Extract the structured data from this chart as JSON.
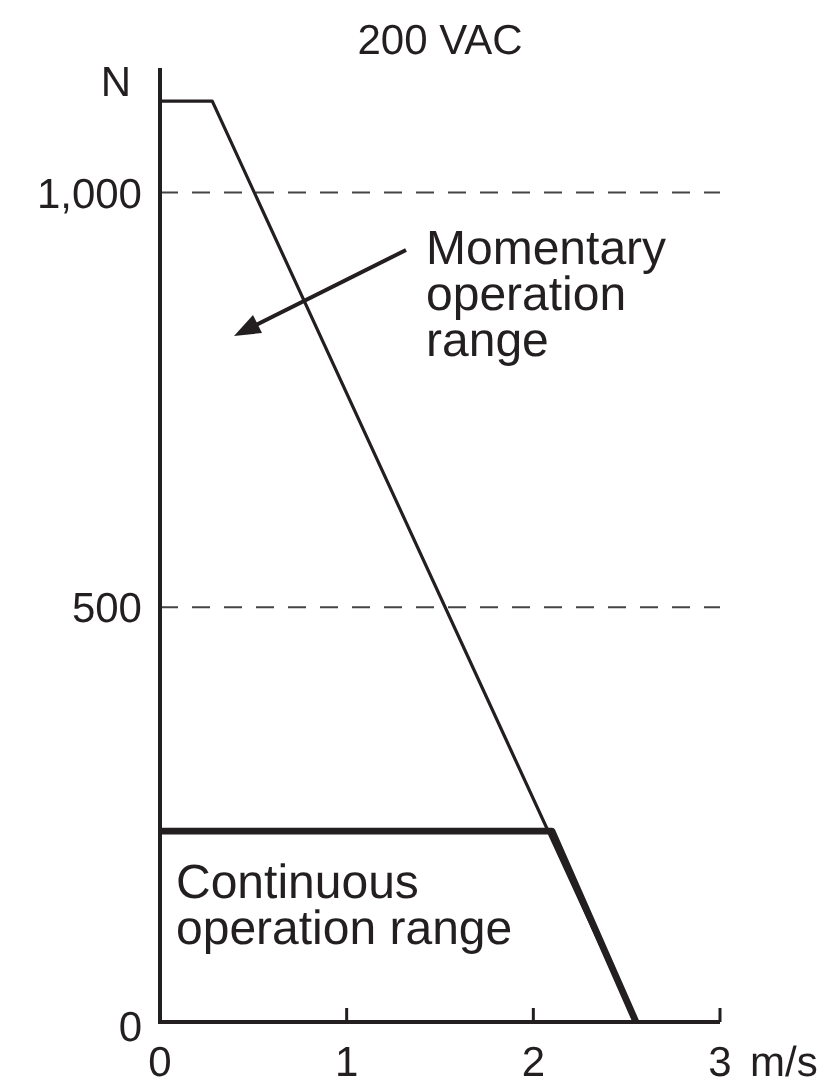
{
  "chart_data": {
    "type": "line",
    "title": "200 VAC",
    "xlabel": "m/s",
    "ylabel": "N",
    "xlim": [
      0,
      3
    ],
    "xticks": [
      0,
      1,
      2,
      3
    ],
    "ylim": [
      0,
      1150
    ],
    "yticks": [
      0,
      500,
      {
        "value": 1000,
        "label": "1,000"
      }
    ],
    "grid": "y",
    "line_style": "solid",
    "series": [
      {
        "color": "#231f20",
        "x": [
          0,
          0.28,
          2.55
        ],
        "values": [
          1110,
          1110,
          0
        ]
      },
      {
        "color": "#231f20",
        "x": [
          0,
          2.1,
          2.55
        ],
        "values": [
          230,
          230,
          0
        ]
      }
    ],
    "annotations": [
      "Momentary\noperation\nrange",
      "Continuous\noperation range"
    ]
  }
}
